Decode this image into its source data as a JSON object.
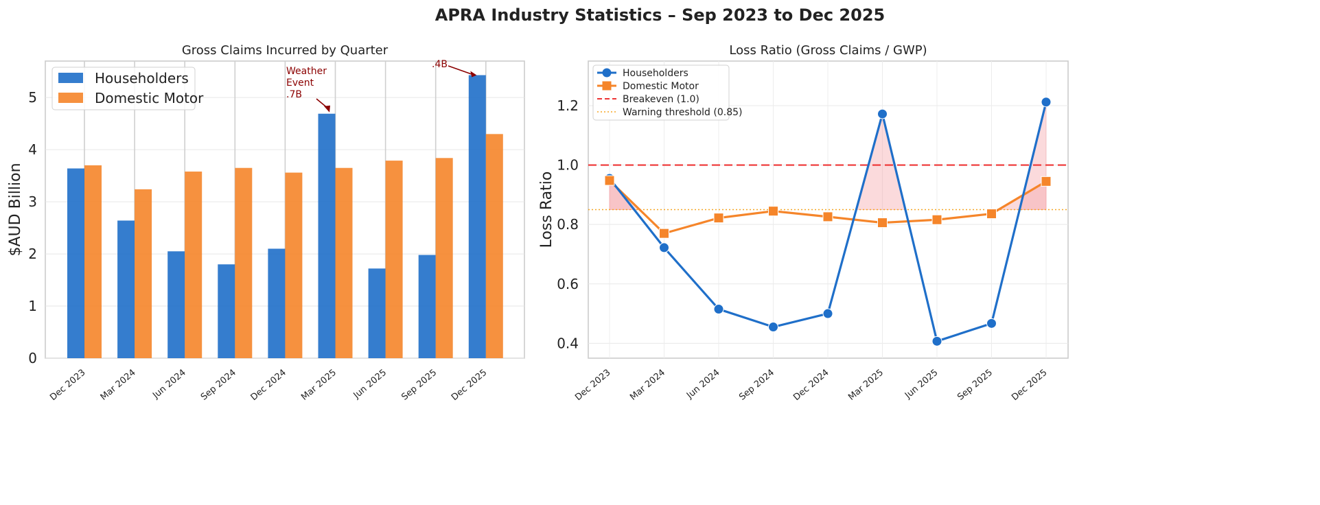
{
  "figure": {
    "title": "APRA Industry Statistics – Sep 2023 to Dec 2025"
  },
  "colors": {
    "householders": "#1f6fc9",
    "domestic_motor": "#f5852a",
    "breakeven": "#ee3333",
    "warning": "#f5a623",
    "annotation": "#8b0000",
    "fill": "#f4a3a8"
  },
  "chart_data": [
    {
      "type": "bar",
      "title": "Gross Claims Incurred by Quarter",
      "xlabel": "",
      "ylabel": "$AUD Billion",
      "ylim": [
        0,
        5.7
      ],
      "yticks": [
        0,
        1,
        2,
        3,
        4,
        5
      ],
      "categories": [
        "Dec 2023",
        "Mar 2024",
        "Jun 2024",
        "Sep 2024",
        "Dec 2024",
        "Mar 2025",
        "Jun 2025",
        "Sep 2025",
        "Dec 2025"
      ],
      "series": [
        {
          "name": "Householders",
          "values": [
            3.64,
            2.64,
            2.05,
            1.8,
            2.1,
            4.69,
            1.72,
            1.98,
            5.43
          ]
        },
        {
          "name": "Domestic Motor",
          "values": [
            3.7,
            3.24,
            3.58,
            3.65,
            3.56,
            3.65,
            3.79,
            3.84,
            4.3
          ]
        }
      ],
      "legend": "top-left",
      "grid": true,
      "annotations": [
        {
          "text_lines": [
            "Weather",
            "Event",
            ".7B"
          ],
          "target_category": "Mar 2025",
          "target_value": 4.69
        },
        {
          "text_lines": [
            ".4B"
          ],
          "target_category": "Dec 2025",
          "target_value": 5.43
        }
      ]
    },
    {
      "type": "line",
      "title": "Loss Ratio (Gross Claims / GWP)",
      "xlabel": "",
      "ylabel": "Loss Ratio",
      "ylim": [
        0.35,
        1.35
      ],
      "yticks": [
        0.4,
        0.6,
        0.8,
        1.0,
        1.2
      ],
      "ytick_labels": [
        "0.4",
        "0.6",
        "0.8",
        "1.0",
        "1.2"
      ],
      "categories": [
        "Dec 2023",
        "Mar 2024",
        "Jun 2024",
        "Sep 2024",
        "Dec 2024",
        "Mar 2025",
        "Jun 2025",
        "Sep 2025",
        "Dec 2025"
      ],
      "series": [
        {
          "name": "Householders",
          "marker": "circle",
          "values": [
            0.955,
            0.722,
            0.515,
            0.455,
            0.5,
            1.172,
            0.407,
            0.467,
            1.212
          ]
        },
        {
          "name": "Domestic Motor",
          "marker": "square",
          "values": [
            0.948,
            0.77,
            0.822,
            0.845,
            0.826,
            0.806,
            0.816,
            0.836,
            0.945
          ]
        }
      ],
      "reference_lines": [
        {
          "name": "Breakeven (1.0)",
          "value": 1.0,
          "style": "dashed"
        },
        {
          "name": "Warning threshold (0.85)",
          "value": 0.85,
          "style": "dotted"
        }
      ],
      "legend": "top-left",
      "grid": true
    }
  ]
}
